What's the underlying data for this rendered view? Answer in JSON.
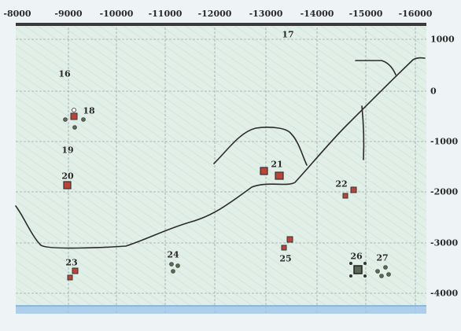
{
  "map": {
    "x_axis_labels": [
      "-8000",
      "-9000",
      "-10000",
      "-11000",
      "-12000",
      "-13000",
      "-14000",
      "-15000",
      "-16000"
    ],
    "y_axis_labels": [
      "1000",
      "0",
      "-1000",
      "-2000",
      "-3000",
      "-4000"
    ],
    "locations": [
      {
        "id": "16",
        "label": "16"
      },
      {
        "id": "17",
        "label": "17"
      },
      {
        "id": "18",
        "label": "18"
      },
      {
        "id": "19",
        "label": "19"
      },
      {
        "id": "20",
        "label": "20"
      },
      {
        "id": "21",
        "label": "21"
      },
      {
        "id": "22",
        "label": "22"
      },
      {
        "id": "23",
        "label": "23"
      },
      {
        "id": "24",
        "label": "24"
      },
      {
        "id": "25",
        "label": "25"
      },
      {
        "id": "26",
        "label": "26"
      },
      {
        "id": "27",
        "label": "27"
      }
    ],
    "colors": {
      "land": "#e2efe8",
      "grass": "#8fc79a",
      "grid": "#9ea6a8",
      "water": "#9ec6e8",
      "road": "#2b2b2b",
      "top_border": "#3a3a3a",
      "building": "#b8453a"
    }
  }
}
